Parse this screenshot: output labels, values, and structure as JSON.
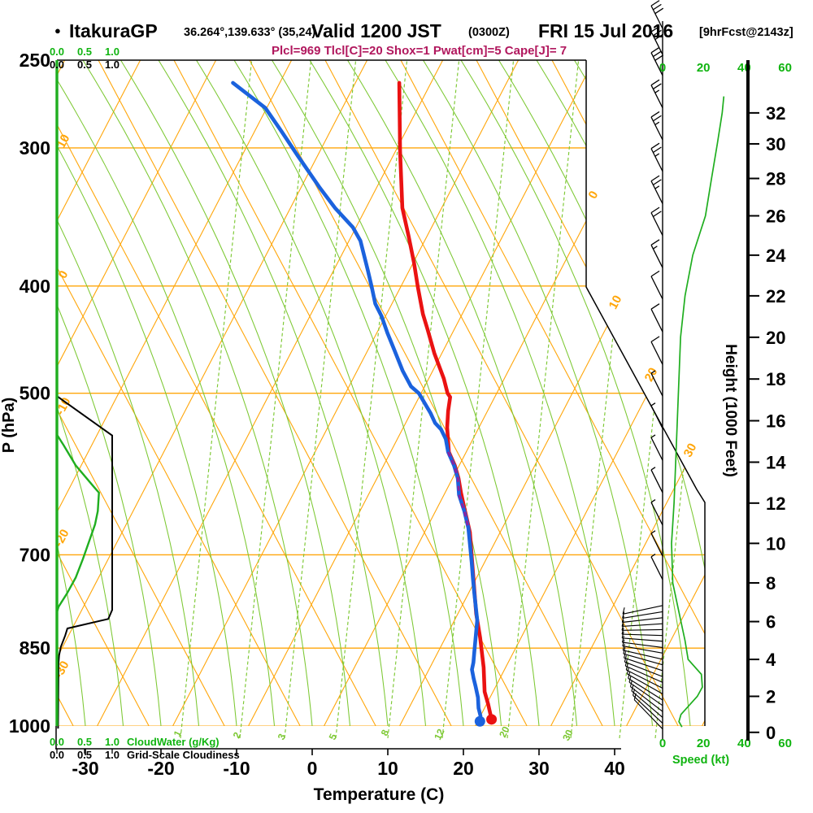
{
  "header": {
    "dot": "●",
    "station": "ItakuraGP",
    "coords": "36.264°,139.633° (35,24)",
    "valid": "Valid 1200 JST",
    "zulu": "(0300Z)",
    "date": "FRI 15 Jul 2016",
    "fcst": "[9hrFcst@2143z]"
  },
  "stability_line": "Plcl=969 Tlcl[C]=20 Shox=1 Pwat[cm]=5 Cape[J]= 7",
  "axes": {
    "pressure": {
      "label": "P (hPa)",
      "ticks": [
        250,
        300,
        400,
        500,
        700,
        850,
        1000
      ]
    },
    "temperature": {
      "label": "Temperature (C)",
      "ticks": [
        -30,
        -20,
        -10,
        0,
        10,
        20,
        30,
        40
      ]
    },
    "height": {
      "label": "Height (1000 Feet)",
      "ticks": [
        0,
        2,
        4,
        6,
        8,
        10,
        12,
        14,
        16,
        18,
        20,
        22,
        24,
        26,
        28,
        30,
        32
      ]
    },
    "speed": {
      "label": "Speed (kt)",
      "ticks": [
        0,
        20,
        40,
        60
      ]
    },
    "cloudwater": {
      "label": "CloudWater (g/Kg)",
      "ticks": [
        "0.0",
        "0.5",
        "1.0"
      ]
    },
    "cloudiness": {
      "label": "Grid-Scale Cloudiness",
      "ticks": [
        "0.0",
        "0.5",
        "1.0"
      ]
    }
  },
  "isopleth_labels": {
    "dry_adiabats_left": [
      "10",
      "0",
      "-10",
      "-20",
      "-30"
    ],
    "isotherms_right": [
      "0",
      "10",
      "20",
      "30"
    ],
    "mixing_ratio": [
      "1",
      "2",
      "3",
      "5",
      "8",
      "12",
      "20",
      "30"
    ]
  },
  "colors": {
    "orange": "#ffa60a",
    "grid_green": "#7cc832",
    "profile_green": "#1fae1f",
    "label_green": "#10b410",
    "temp_red": "#ea1212",
    "dew_blue": "#1b62dd",
    "overlap_purple": "#8d22a0",
    "param_magenta": "#b1185e",
    "black": "#000000"
  },
  "chart_data": {
    "type": "line",
    "subtype": "skewt_log_p_sounding",
    "title": "ItakuraGP sounding valid 1200 JST FRI 15 Jul 2016 (9hr forecast)",
    "xlabel": "Temperature (C)",
    "ylabel": "P (hPa)",
    "x_range_c": [
      -30,
      40
    ],
    "pressure_range_hpa": [
      250,
      1000
    ],
    "series": [
      {
        "name": "temperature_c_vs_hpa",
        "color": "#ea1212",
        "points": [
          [
            262,
            -34.2
          ],
          [
            302,
            -29.4
          ],
          [
            340,
            -25.2
          ],
          [
            360,
            -22.5
          ],
          [
            381,
            -19.9
          ],
          [
            401,
            -17.7
          ],
          [
            424,
            -15.2
          ],
          [
            438,
            -13.5
          ],
          [
            460,
            -11.0
          ],
          [
            485,
            -8.0
          ],
          [
            500,
            -6.5
          ],
          [
            504,
            -5.9
          ],
          [
            519,
            -5.2
          ],
          [
            537,
            -4.2
          ],
          [
            565,
            -2.3
          ],
          [
            581,
            -0.6
          ],
          [
            597,
            0.8
          ],
          [
            615,
            2.1
          ],
          [
            639,
            3.9
          ],
          [
            668,
            6.0
          ],
          [
            706,
            8.1
          ],
          [
            791,
            12.4
          ],
          [
            832,
            14.6
          ],
          [
            885,
            17.1
          ],
          [
            931,
            18.9
          ],
          [
            955,
            20.2
          ],
          [
            986,
            21.7
          ]
        ]
      },
      {
        "name": "dewpoint_c_vs_hpa",
        "color": "#1b62dd",
        "points": [
          [
            262,
            -56.2
          ],
          [
            276,
            -50.2
          ],
          [
            290,
            -46.4
          ],
          [
            305,
            -42.6
          ],
          [
            326,
            -37.5
          ],
          [
            340,
            -34.1
          ],
          [
            354,
            -30.4
          ],
          [
            364,
            -28.5
          ],
          [
            387,
            -25.5
          ],
          [
            401,
            -23.8
          ],
          [
            415,
            -22.2
          ],
          [
            426,
            -20.5
          ],
          [
            441,
            -18.6
          ],
          [
            457,
            -16.5
          ],
          [
            477,
            -14.0
          ],
          [
            493,
            -11.8
          ],
          [
            500,
            -10.3
          ],
          [
            510,
            -8.9
          ],
          [
            521,
            -7.4
          ],
          [
            532,
            -6.1
          ],
          [
            539,
            -4.9
          ],
          [
            550,
            -3.6
          ],
          [
            565,
            -2.4
          ],
          [
            581,
            -0.7
          ],
          [
            597,
            0.7
          ],
          [
            618,
            2.0
          ],
          [
            639,
            3.8
          ],
          [
            662,
            5.5
          ],
          [
            711,
            8.3
          ],
          [
            734,
            9.5
          ],
          [
            757,
            10.7
          ],
          [
            802,
            13.0
          ],
          [
            857,
            14.8
          ],
          [
            876,
            15.4
          ],
          [
            889,
            15.7
          ],
          [
            905,
            16.5
          ],
          [
            920,
            17.3
          ],
          [
            942,
            18.4
          ],
          [
            963,
            19.2
          ],
          [
            979,
            20.0
          ],
          [
            990,
            20.3
          ]
        ]
      },
      {
        "name": "saturated_overlap_c_vs_hpa",
        "color": "#8d22a0",
        "points": [
          [
            565,
            -2.4
          ],
          [
            581,
            -0.7
          ],
          [
            597,
            0.7
          ],
          [
            618,
            2.0
          ],
          [
            639,
            3.8
          ],
          [
            662,
            5.5
          ]
        ]
      },
      {
        "name": "cloud_water_g_per_kg_vs_hpa",
        "color": "#1fae1f",
        "points": [
          [
            250,
            0
          ],
          [
            545,
            0
          ],
          [
            557,
            0.12
          ],
          [
            581,
            0.34
          ],
          [
            607,
            0.66
          ],
          [
            615,
            0.76
          ],
          [
            639,
            0.74
          ],
          [
            657,
            0.69
          ],
          [
            679,
            0.59
          ],
          [
            706,
            0.47
          ],
          [
            734,
            0.34
          ],
          [
            759,
            0.18
          ],
          [
            780,
            0.03
          ],
          [
            789,
            0
          ],
          [
            1000,
            0
          ]
        ]
      },
      {
        "name": "grid_scale_cloudiness_vs_hpa",
        "color": "#000000",
        "points": [
          [
            250,
            0
          ],
          [
            503,
            0
          ],
          [
            546,
            1.0
          ],
          [
            785,
            1.0
          ],
          [
            800,
            0.93
          ],
          [
            816,
            0.19
          ],
          [
            828,
            0.15
          ],
          [
            848,
            0.07
          ],
          [
            863,
            0.04
          ],
          [
            876,
            0.03
          ],
          [
            1005,
            0.02
          ]
        ]
      },
      {
        "name": "wind_speed_kt_vs_kft",
        "color": "#1fae1f",
        "points": [
          [
            33.2,
            30
          ],
          [
            32,
            29.2
          ],
          [
            30,
            26.8
          ],
          [
            28,
            24
          ],
          [
            26,
            21
          ],
          [
            24,
            14.8
          ],
          [
            22,
            11
          ],
          [
            20,
            8.8
          ],
          [
            18,
            8
          ],
          [
            16,
            7.2
          ],
          [
            14,
            6.4
          ],
          [
            12,
            5.6
          ],
          [
            10,
            4.4
          ],
          [
            8,
            5
          ],
          [
            6,
            9
          ],
          [
            5,
            11
          ],
          [
            4,
            12.5
          ],
          [
            3.2,
            19
          ],
          [
            2.5,
            19.5
          ],
          [
            2,
            17
          ],
          [
            1.5,
            13
          ],
          [
            1,
            9
          ],
          [
            0.6,
            8
          ],
          [
            0.3,
            9.5
          ]
        ]
      }
    ],
    "wind_barbs": {
      "upper_hpa_kt": [
        [
          234,
          32
        ],
        [
          247,
          31
        ],
        [
          258,
          30
        ],
        [
          276,
          29
        ],
        [
          295,
          29
        ],
        [
          315,
          28
        ],
        [
          337,
          28
        ],
        [
          360,
          22
        ],
        [
          385,
          18
        ],
        [
          411,
          14
        ],
        [
          440,
          12
        ],
        [
          471,
          10
        ],
        [
          503,
          9
        ],
        [
          538,
          8
        ],
        [
          575,
          7
        ],
        [
          615,
          6
        ],
        [
          658,
          5
        ],
        [
          702,
          5
        ],
        [
          737,
          6
        ]
      ],
      "surface_fan_hpa_kt": [
        [
          778,
          8
        ],
        [
          788,
          9
        ],
        [
          798,
          10
        ],
        [
          808,
          11
        ],
        [
          818,
          12
        ],
        [
          828,
          13
        ],
        [
          838,
          14
        ],
        [
          849,
          15
        ],
        [
          859,
          16
        ],
        [
          870,
          17
        ],
        [
          880,
          18
        ],
        [
          891,
          18
        ],
        [
          902,
          17
        ],
        [
          913,
          16
        ],
        [
          924,
          15
        ],
        [
          935,
          14
        ],
        [
          947,
          13
        ],
        [
          958,
          12
        ],
        [
          970,
          11
        ],
        [
          982,
          10
        ],
        [
          994,
          10
        ],
        [
          1006,
          9
        ]
      ]
    },
    "grid": {
      "isotherm_step_c": 10,
      "horizontal_pressure_lines": [
        300,
        400,
        500,
        700,
        850,
        1000
      ]
    },
    "legend_position": "none"
  }
}
